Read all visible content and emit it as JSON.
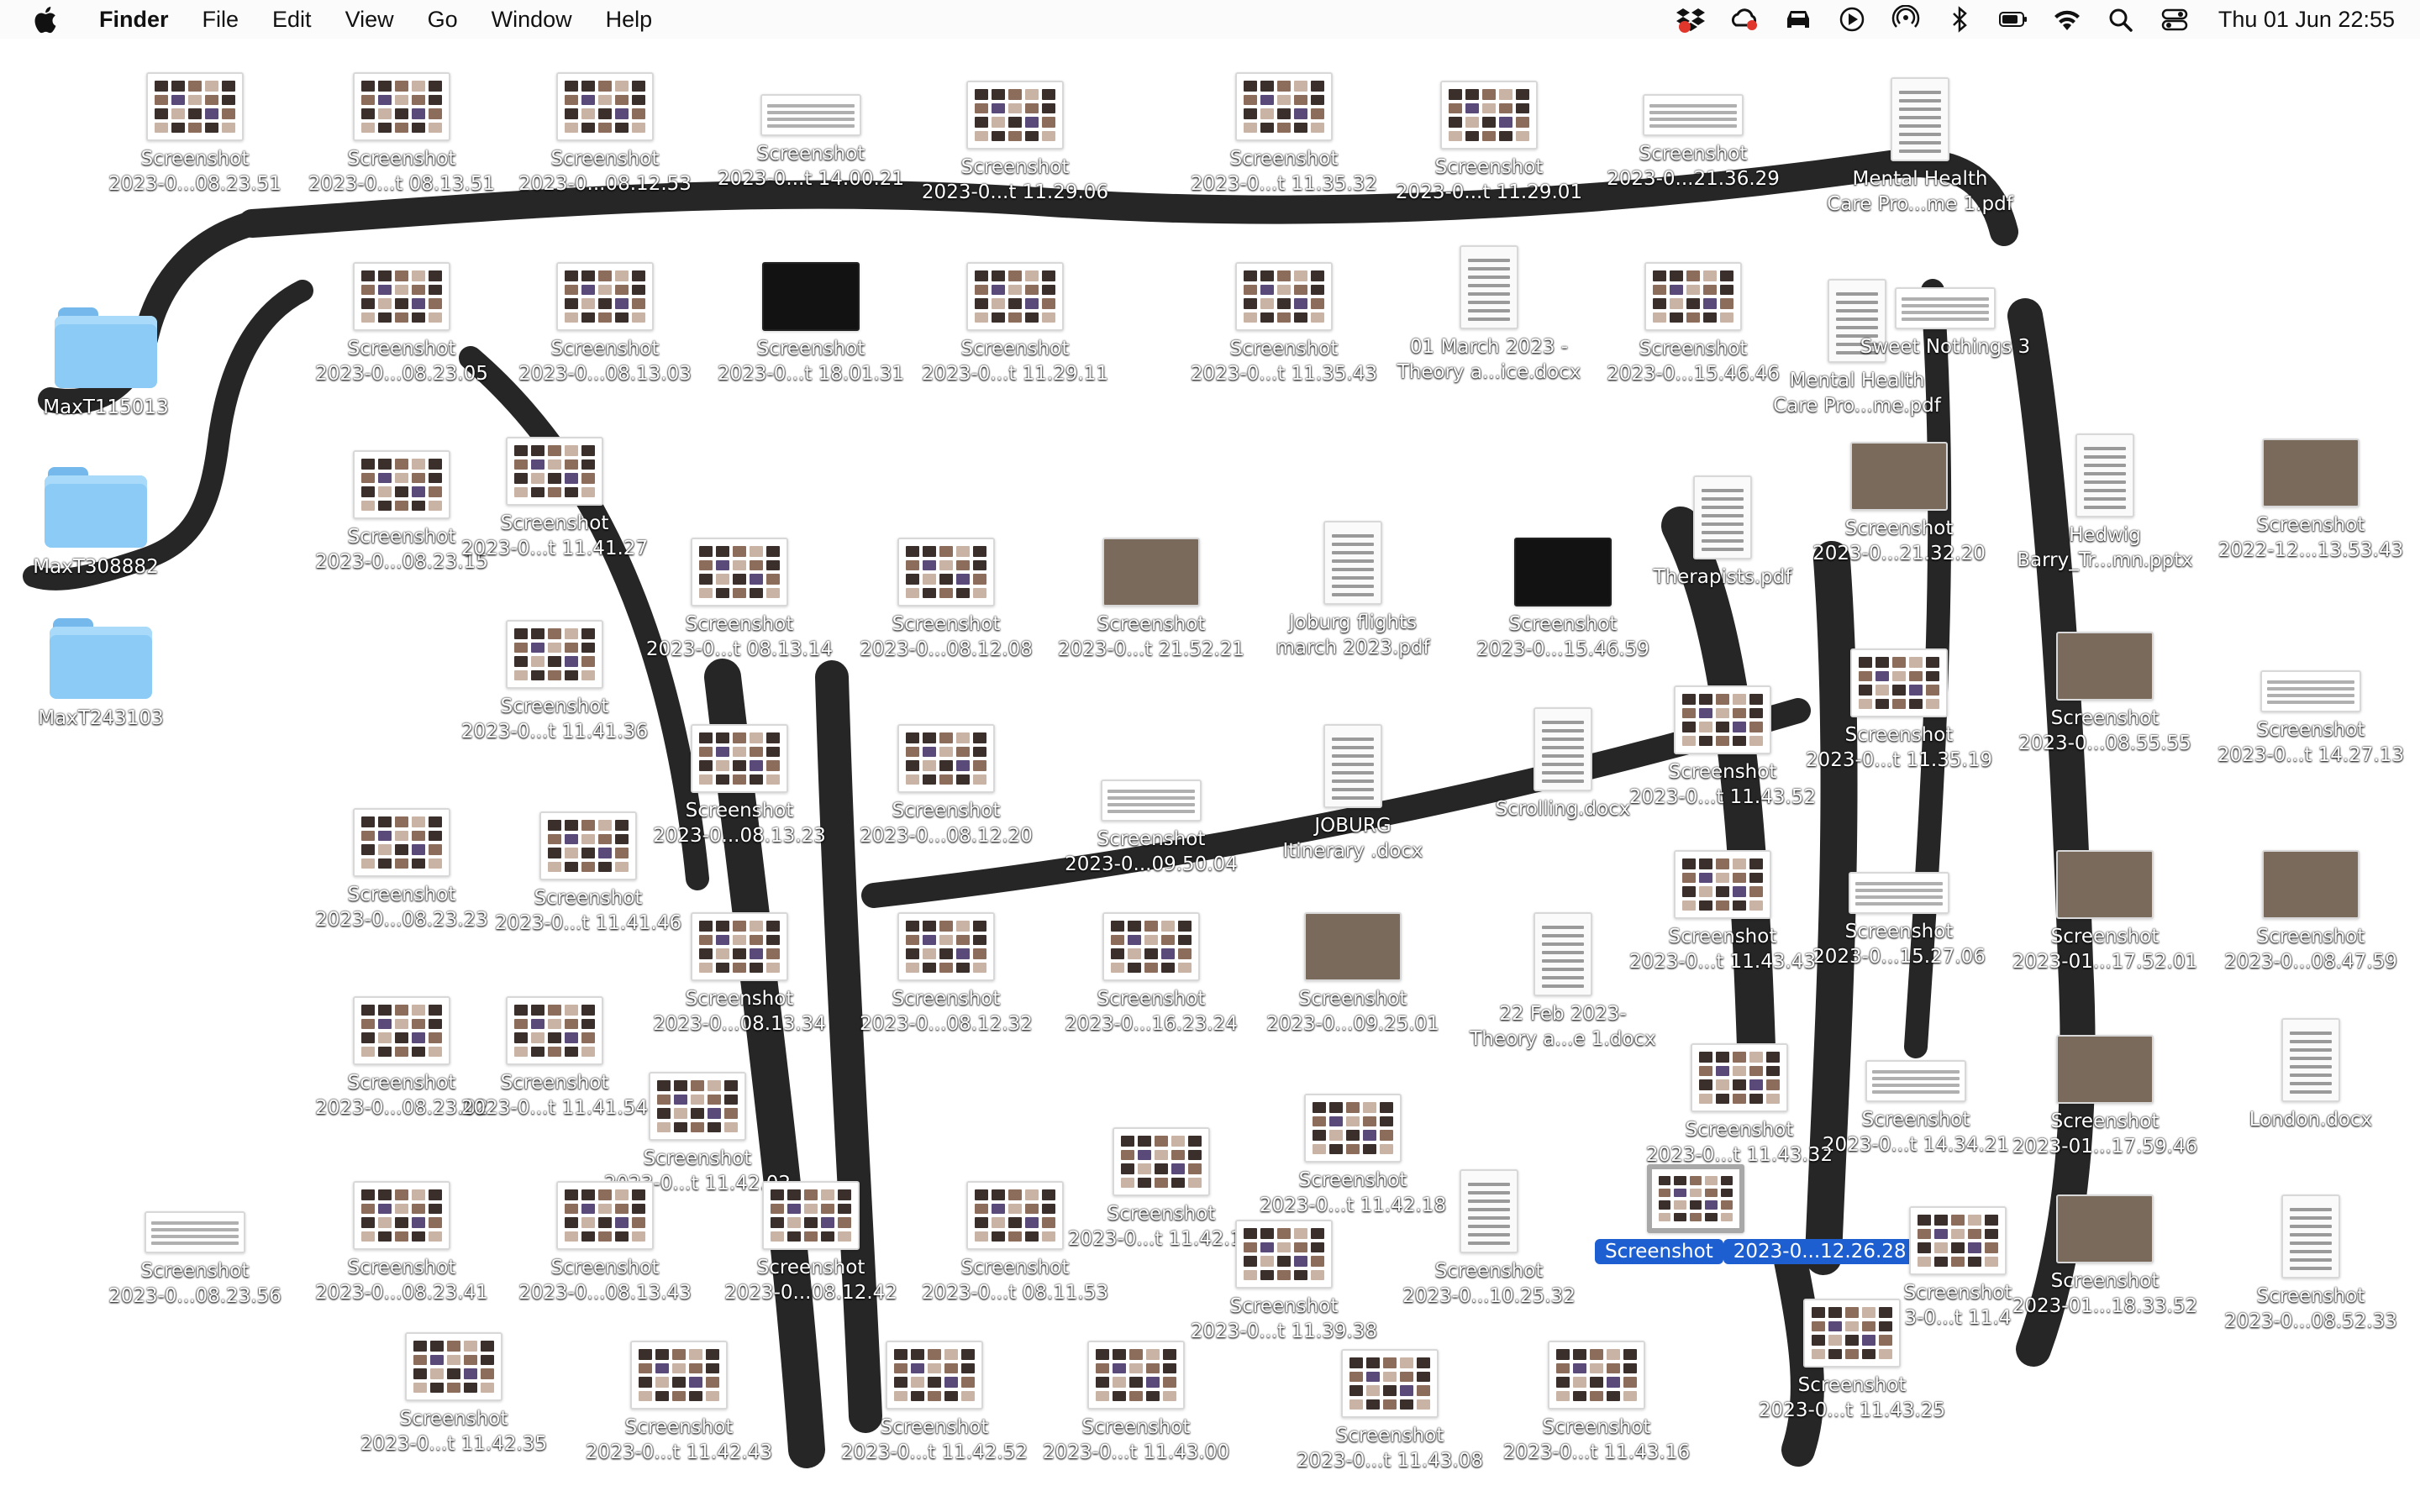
{
  "menubar": {
    "app_name": "Finder",
    "menus": [
      "File",
      "Edit",
      "View",
      "Go",
      "Window",
      "Help"
    ],
    "status_icons": [
      "dropbox-icon",
      "creative-cloud-icon",
      "car-icon",
      "play-icon",
      "airdrop-icon",
      "bluetooth-icon",
      "battery-icon",
      "wifi-icon",
      "spotlight-search-icon",
      "control-center-icon"
    ],
    "clock": "Thu 01 Jun  22:55"
  },
  "desktop": {
    "wallpaper": "ink drawing of a horse",
    "items": [
      {
        "kind": "screenshot",
        "line1": "Screenshot",
        "line2": "2023-0...08.23.51"
      },
      {
        "kind": "screenshot",
        "line1": "Screenshot",
        "line2": "2023-0...t 08.13.51"
      },
      {
        "kind": "screenshot",
        "line1": "Screenshot",
        "line2": "2023-0...08.12.53"
      },
      {
        "kind": "doc-wide",
        "line1": "Screenshot",
        "line2": "2023-0...t 14.00.21"
      },
      {
        "kind": "screenshot",
        "line1": "Screenshot",
        "line2": "2023-0...t 11.29.06"
      },
      {
        "kind": "screenshot",
        "line1": "Screenshot",
        "line2": "2023-0...t 11.35.32"
      },
      {
        "kind": "screenshot",
        "line1": "Screenshot",
        "line2": "2023-0...t 11.29.01"
      },
      {
        "kind": "doc-wide",
        "line1": "Screenshot",
        "line2": "2023-0...21.36.29"
      },
      {
        "kind": "pdf",
        "line1": "Mental Health",
        "line2": "Care Pro...me 1.pdf"
      },
      {
        "kind": "folder",
        "line1": "MaxT115013",
        "line2": ""
      },
      {
        "kind": "folder",
        "line1": "MaxT308882",
        "line2": ""
      },
      {
        "kind": "folder",
        "line1": "MaxT243103",
        "line2": ""
      },
      {
        "kind": "screenshot",
        "line1": "Screenshot",
        "line2": "2023-0...08.23.05"
      },
      {
        "kind": "screenshot",
        "line1": "Screenshot",
        "line2": "2023-0...08.13.03"
      },
      {
        "kind": "dark",
        "line1": "Screenshot",
        "line2": "2023-0...t 18.01.31"
      },
      {
        "kind": "screenshot",
        "line1": "Screenshot",
        "line2": "2023-0...t 11.29.11"
      },
      {
        "kind": "screenshot",
        "line1": "Screenshot",
        "line2": "2023-0...t 11.35.43"
      },
      {
        "kind": "docx",
        "line1": "01 March 2023 -",
        "line2": "Theory a...ice.docx"
      },
      {
        "kind": "screenshot",
        "line1": "Screenshot",
        "line2": "2023-0...15.46.46"
      },
      {
        "kind": "pdf",
        "line1": "Mental Health",
        "line2": "Care Pro...me.pdf"
      },
      {
        "kind": "doc-wide",
        "line1": "Sweet Nothings 3",
        "line2": ""
      },
      {
        "kind": "screenshot",
        "line1": "Screenshot",
        "line2": "2023-0...08.23.15"
      },
      {
        "kind": "screenshot",
        "line1": "Screenshot",
        "line2": "2023-0...t 11.41.27"
      },
      {
        "kind": "screenshot",
        "line1": "Screenshot",
        "line2": "2023-0...t 08.13.14"
      },
      {
        "kind": "screenshot",
        "line1": "Screenshot",
        "line2": "2023-0...08.12.08"
      },
      {
        "kind": "photo",
        "line1": "Screenshot",
        "line2": "2023-0...t 21.52.21"
      },
      {
        "kind": "pdf",
        "line1": "Joburg flights",
        "line2": "march 2023.pdf"
      },
      {
        "kind": "dark",
        "line1": "Screenshot",
        "line2": "2023-0...15.46.59"
      },
      {
        "kind": "pdf",
        "line1": "Therapists.pdf",
        "line2": ""
      },
      {
        "kind": "photo",
        "line1": "Screenshot",
        "line2": "2023-0...21.32.20"
      },
      {
        "kind": "doc",
        "line1": "Hedwig",
        "line2": "Barry_Tr...mn.pptx"
      },
      {
        "kind": "photo",
        "line1": "Screenshot",
        "line2": "2022-12...13.53.43"
      },
      {
        "kind": "screenshot",
        "line1": "Screenshot",
        "line2": "2023-0...t 11.41.36"
      },
      {
        "kind": "screenshot",
        "line1": "Screenshot",
        "line2": "2023-0...t 11.35.19"
      },
      {
        "kind": "photo",
        "line1": "Screenshot",
        "line2": "2023-0...08.55.55"
      },
      {
        "kind": "doc-wide",
        "line1": "Screenshot",
        "line2": "2023-0...t 14.27.13"
      },
      {
        "kind": "screenshot",
        "line1": "Screenshot",
        "line2": "2023-0...08.23.23"
      },
      {
        "kind": "screenshot",
        "line1": "Screenshot",
        "line2": "2023-0...t 11.41.46"
      },
      {
        "kind": "screenshot",
        "line1": "Screenshot",
        "line2": "2023-0...08.13.23"
      },
      {
        "kind": "screenshot",
        "line1": "Screenshot",
        "line2": "2023-0...08.12.20"
      },
      {
        "kind": "doc-wide",
        "line1": "Screenshot",
        "line2": "2023-0...09.50.04"
      },
      {
        "kind": "docx",
        "line1": "JOBURG",
        "line2": "Itinerary .docx"
      },
      {
        "kind": "docx",
        "line1": "Scrolling.docx",
        "line2": ""
      },
      {
        "kind": "screenshot",
        "line1": "Screenshot",
        "line2": "2023-0...t 11.43.52"
      },
      {
        "kind": "doc-wide",
        "line1": "Screenshot",
        "line2": "2023-0...15.27.06"
      },
      {
        "kind": "photo",
        "line1": "Screenshot",
        "line2": "2023-01...17.52.01"
      },
      {
        "kind": "photo",
        "line1": "Screenshot",
        "line2": "2023-0...08.47.59"
      },
      {
        "kind": "screenshot",
        "line1": "Screenshot",
        "line2": "2023-0...08.23.02"
      },
      {
        "kind": "screenshot",
        "line1": "Screenshot",
        "line2": "2023-0...t 11.41.54"
      },
      {
        "kind": "screenshot",
        "line1": "Screenshot",
        "line2": "2023-0...08.13.34"
      },
      {
        "kind": "screenshot",
        "line1": "Screenshot",
        "line2": "2023-0...08.12.32"
      },
      {
        "kind": "screenshot",
        "line1": "Screenshot",
        "line2": "2023-0...16.23.24"
      },
      {
        "kind": "photo",
        "line1": "Screenshot",
        "line2": "2023-0...09.25.01"
      },
      {
        "kind": "docx",
        "line1": "22 Feb 2023-",
        "line2": "Theory a...e 1.docx"
      },
      {
        "kind": "screenshot",
        "line1": "Screenshot",
        "line2": "2023-0...t 11.43.43"
      },
      {
        "kind": "doc-wide",
        "line1": "Screenshot",
        "line2": "2023-0...t 14.34.21"
      },
      {
        "kind": "photo",
        "line1": "Screenshot",
        "line2": "2023-01...17.59.46"
      },
      {
        "kind": "docx",
        "line1": "London.docx",
        "line2": ""
      },
      {
        "kind": "screenshot",
        "line1": "Screenshot",
        "line2": "2023-0...t 11.42.02"
      },
      {
        "kind": "screenshot",
        "line1": "Screenshot",
        "line2": "2023-0...t 11.42.11"
      },
      {
        "kind": "screenshot",
        "line1": "Screenshot",
        "line2": "2023-0...t 11.42.18"
      },
      {
        "kind": "screenshot",
        "line1": "Screenshot",
        "line2": "2023-0...t 11.43.32"
      },
      {
        "kind": "doc-wide",
        "line1": "Screenshot",
        "line2": "2023-0...08.23.56"
      },
      {
        "kind": "screenshot",
        "line1": "Screenshot",
        "line2": "2023-0...08.23.41"
      },
      {
        "kind": "screenshot",
        "line1": "Screenshot",
        "line2": "2023-0...08.13.43"
      },
      {
        "kind": "screenshot",
        "line1": "Screenshot",
        "line2": "2023-0...08.12.42"
      },
      {
        "kind": "screenshot",
        "line1": "Screenshot",
        "line2": "2023-0...t 08.11.53"
      },
      {
        "kind": "screenshot",
        "line1": "Screenshot",
        "line2": "2023-0...t 11.39.38"
      },
      {
        "kind": "doc",
        "line1": "Screenshot",
        "line2": "2023-0...10.25.32"
      },
      {
        "kind": "selected",
        "line1": "Screenshot",
        "line2": "2023-0...12.26.28"
      },
      {
        "kind": "screenshot",
        "line1": "Screenshot",
        "line2": "3-0...t 11.4"
      },
      {
        "kind": "photo",
        "line1": "Screenshot",
        "line2": "2023-01...18.33.52"
      },
      {
        "kind": "doc",
        "line1": "Screenshot",
        "line2": "2023-0...08.52.33"
      },
      {
        "kind": "screenshot",
        "line1": "Screenshot",
        "line2": "2023-0...t 11.42.35"
      },
      {
        "kind": "screenshot",
        "line1": "Screenshot",
        "line2": "2023-0...t 11.42.43"
      },
      {
        "kind": "screenshot",
        "line1": "Screenshot",
        "line2": "2023-0...t 11.42.52"
      },
      {
        "kind": "screenshot",
        "line1": "Screenshot",
        "line2": "2023-0...t 11.43.00"
      },
      {
        "kind": "screenshot",
        "line1": "Screenshot",
        "line2": "2023-0...t 11.43.08"
      },
      {
        "kind": "screenshot",
        "line1": "Screenshot",
        "line2": "2023-0...t 11.43.16"
      },
      {
        "kind": "screenshot",
        "line1": "Screenshot",
        "line2": "2023-0...t 11.43.25"
      }
    ]
  }
}
